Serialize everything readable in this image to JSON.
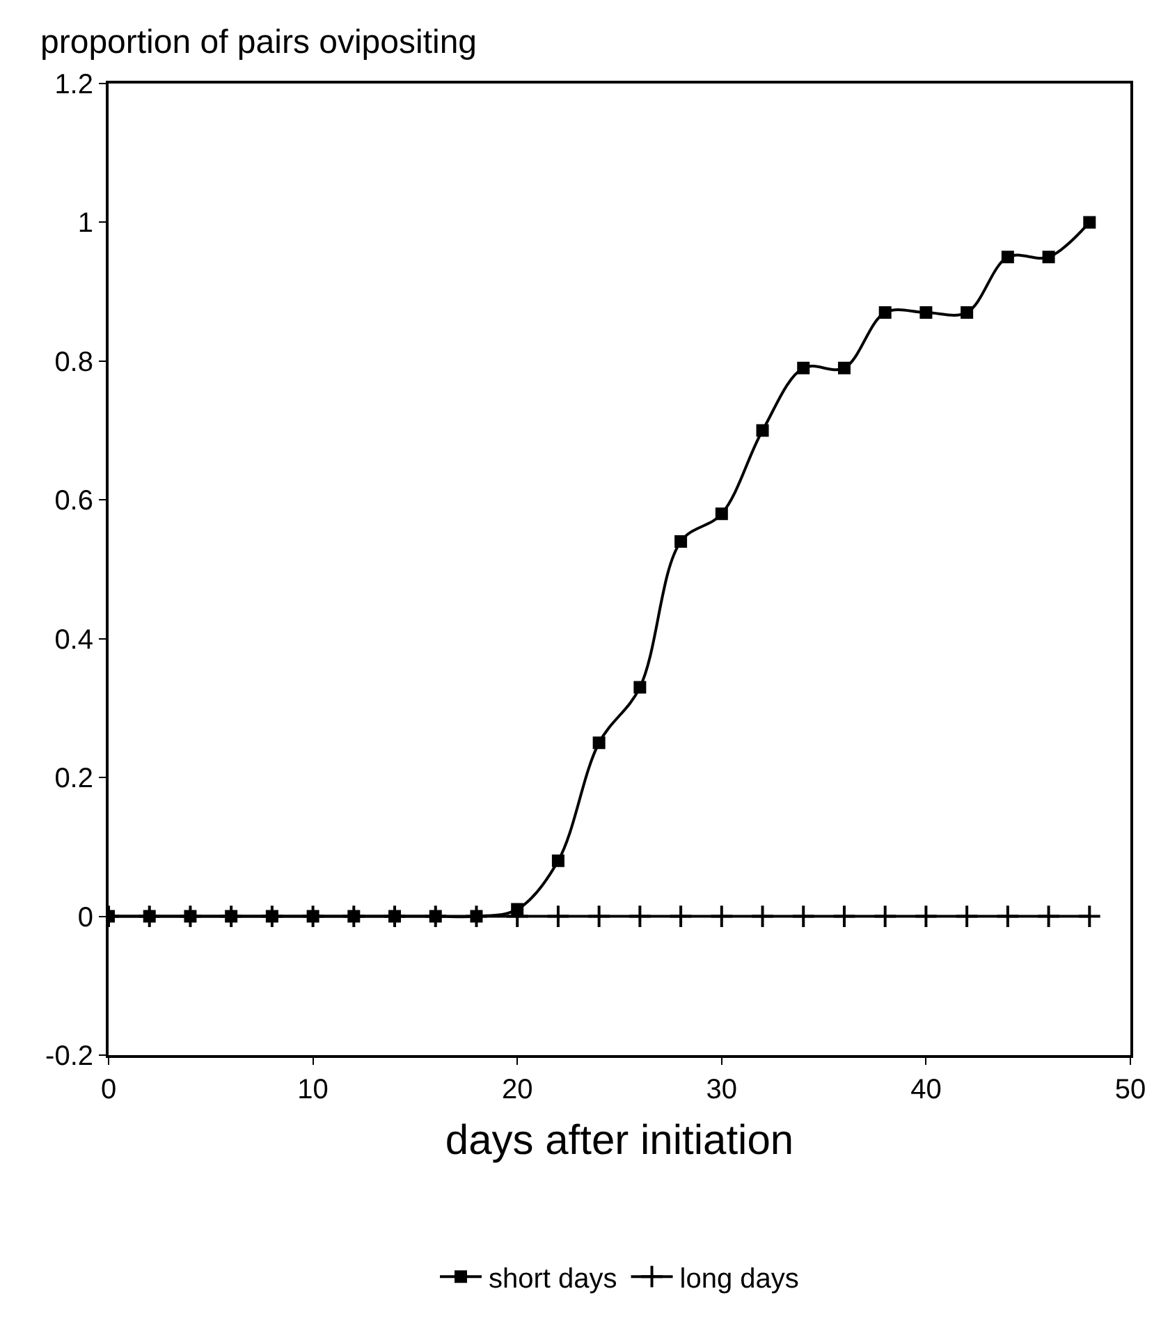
{
  "chart_data": {
    "type": "line",
    "ylabel": "proportion of pairs ovipositing",
    "xlabel": "days after initiation",
    "x": [
      0,
      2,
      4,
      6,
      8,
      10,
      12,
      14,
      16,
      18,
      20,
      22,
      24,
      26,
      28,
      30,
      32,
      34,
      36,
      38,
      40,
      42,
      44,
      46,
      48
    ],
    "series": [
      {
        "name": "short days",
        "color": "#000000",
        "marker": "square",
        "values": [
          0,
          0,
          0,
          0,
          0,
          0,
          0,
          0,
          0,
          0,
          0.01,
          0.08,
          0.25,
          0.33,
          0.54,
          0.58,
          0.7,
          0.79,
          0.79,
          0.87,
          0.87,
          0.87,
          0.95,
          0.95,
          1.0
        ]
      },
      {
        "name": "long days",
        "color": "#000000",
        "marker": "cross",
        "values": [
          0,
          0,
          0,
          0,
          0,
          0,
          0,
          0,
          0,
          0,
          0,
          0,
          0,
          0,
          0,
          0,
          0,
          0,
          0,
          0,
          0,
          0,
          0,
          0,
          0
        ]
      }
    ],
    "xlim": [
      0,
      50
    ],
    "xticks": [
      0,
      10,
      20,
      30,
      40,
      50
    ],
    "ylim": [
      -0.2,
      1.2
    ],
    "yticks": [
      -0.2,
      0,
      0.2,
      0.4,
      0.6,
      0.8,
      1,
      1.2
    ],
    "legend": "bottom",
    "line_style": "solid"
  }
}
